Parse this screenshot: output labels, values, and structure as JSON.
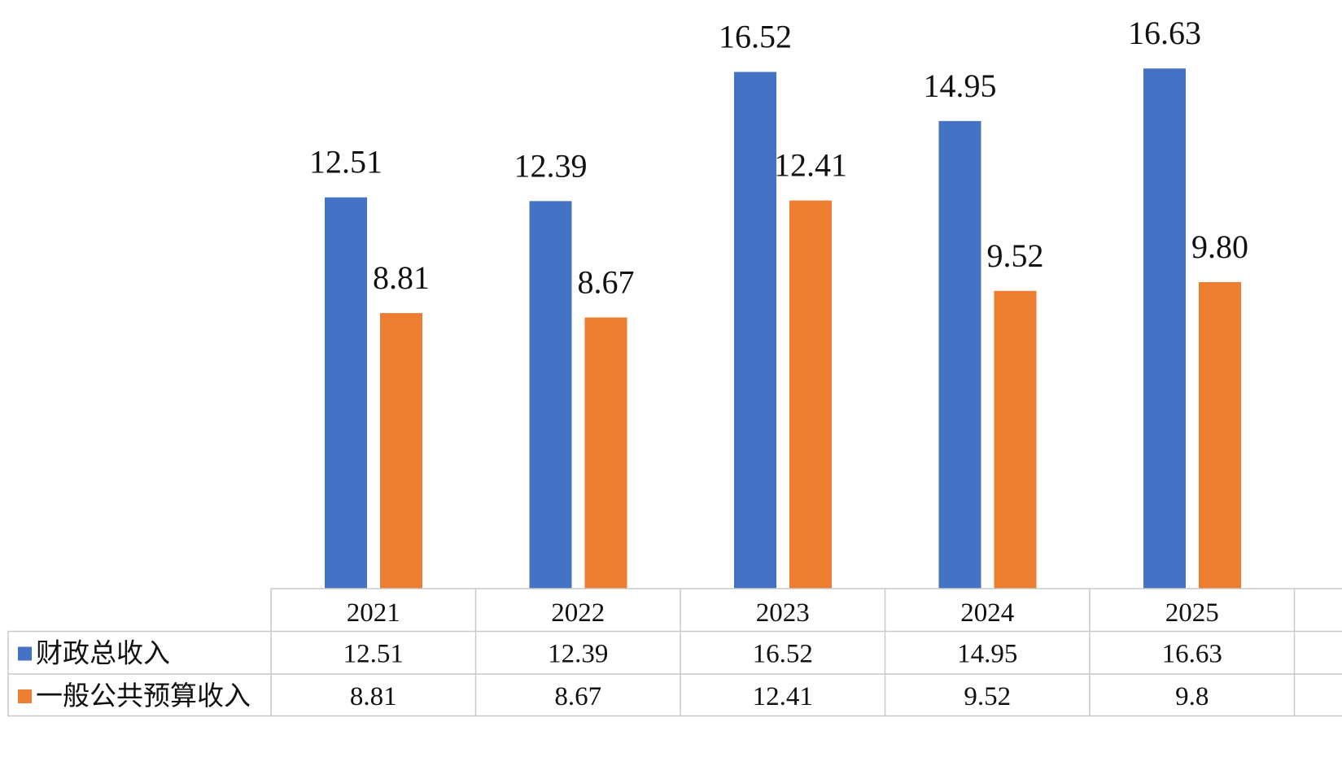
{
  "chart_data": {
    "type": "bar",
    "title": "",
    "xlabel": "",
    "ylabel": "",
    "categories": [
      "2021",
      "2022",
      "2023",
      "2024",
      "2025"
    ],
    "series": [
      {
        "name": "财政总收入",
        "color": "#4472C4",
        "values": [
          12.51,
          12.39,
          16.52,
          14.95,
          16.63
        ],
        "bar_labels": [
          "12.51",
          "12.39",
          "16.52",
          "14.95",
          "16.63"
        ],
        "table_values": [
          "12.51",
          "12.39",
          "16.52",
          "14.95",
          "16.63"
        ]
      },
      {
        "name": "一般公共预算收入",
        "color": "#ED7D31",
        "values": [
          8.81,
          8.67,
          12.41,
          9.52,
          9.8
        ],
        "bar_labels": [
          "8.81",
          "8.67",
          "12.41",
          "9.52",
          "9.80"
        ],
        "table_values": [
          "8.81",
          "8.67",
          "12.41",
          "9.52",
          "9.8"
        ]
      }
    ],
    "ylim": [
      0,
      18.5
    ],
    "grid": false,
    "legend": "data-table",
    "data_table": true
  }
}
